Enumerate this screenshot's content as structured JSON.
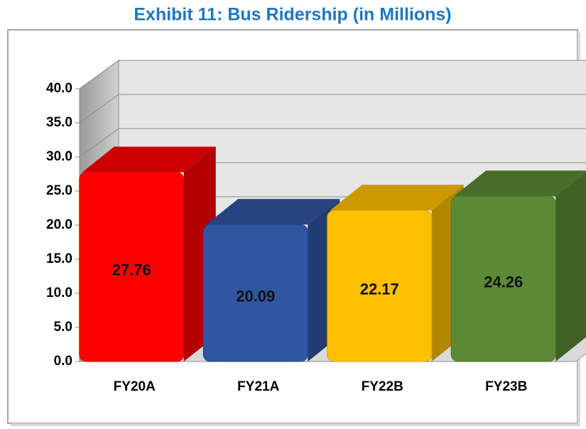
{
  "chart_data": {
    "type": "bar3d",
    "title": "Exhibit 11: Bus Ridership (in Millions)",
    "categories": [
      "FY20A",
      "FY21A",
      "FY22B",
      "FY23B"
    ],
    "values": [
      27.76,
      20.09,
      22.17,
      24.26
    ],
    "colors": [
      "#ff0000",
      "#2f56a0",
      "#ffc000",
      "#5b8a35"
    ],
    "ylim": [
      0,
      40
    ],
    "yticks": [
      {
        "value": 0,
        "label": "0.0"
      },
      {
        "value": 5,
        "label": "5.0"
      },
      {
        "value": 10,
        "label": "10.0"
      },
      {
        "value": 15,
        "label": "15.0"
      },
      {
        "value": 20,
        "label": "20.0"
      },
      {
        "value": 25,
        "label": "25.0"
      },
      {
        "value": 30,
        "label": "30.0"
      },
      {
        "value": 35,
        "label": "35.0"
      },
      {
        "value": 40,
        "label": "40.0"
      }
    ],
    "grid": true
  }
}
